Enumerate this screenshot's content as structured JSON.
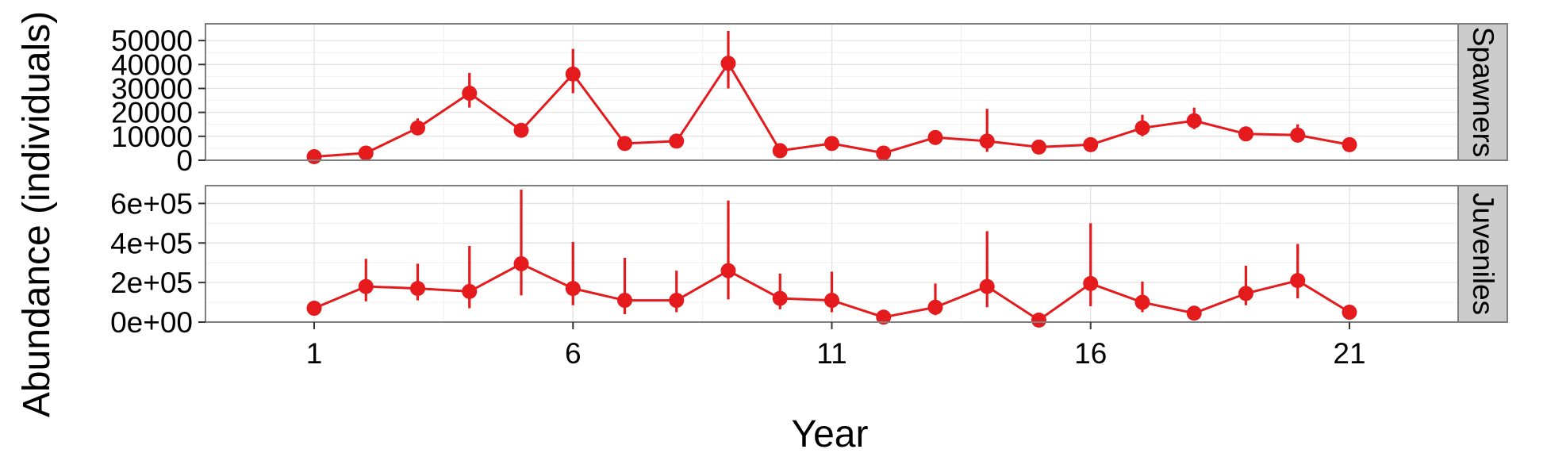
{
  "chart_data": {
    "type": "line",
    "xlabel": "Year",
    "ylabel": "Abundance (individuals)",
    "x": [
      1,
      2,
      3,
      4,
      5,
      6,
      7,
      8,
      9,
      10,
      11,
      12,
      13,
      14,
      15,
      16,
      17,
      18,
      19,
      20,
      21
    ],
    "x_ticks": [
      1,
      6,
      11,
      16,
      21
    ],
    "xlim": [
      -1.1,
      23.1
    ],
    "grid": true,
    "point_color": "#e41a1c",
    "strip_color": "#cccccc",
    "panels": [
      {
        "strip_label": "Spawners",
        "ylim": [
          0,
          57000
        ],
        "y_ticks": [
          0,
          10000,
          20000,
          30000,
          40000,
          50000
        ],
        "y_tick_labels": [
          "0",
          "10000",
          "20000",
          "30000",
          "40000",
          "50000"
        ],
        "values": [
          1500,
          3000,
          13500,
          28000,
          12500,
          36000,
          7000,
          8000,
          40500,
          4000,
          7000,
          3000,
          9500,
          8000,
          5500,
          6500,
          13500,
          16500,
          11000,
          10500,
          6500
        ],
        "lower": [
          null,
          null,
          11000,
          22000,
          null,
          28000,
          null,
          null,
          30000,
          null,
          null,
          null,
          null,
          3500,
          null,
          null,
          10000,
          13000,
          null,
          8000,
          null
        ],
        "upper": [
          null,
          null,
          17500,
          36500,
          null,
          46500,
          null,
          null,
          54000,
          null,
          null,
          null,
          null,
          21500,
          null,
          null,
          19000,
          22000,
          null,
          15000,
          null
        ]
      },
      {
        "strip_label": "Juveniles",
        "ylim": [
          0,
          690000
        ],
        "y_ticks": [
          0,
          200000,
          400000,
          600000
        ],
        "y_tick_labels": [
          "0e+00",
          "2e+05",
          "4e+05",
          "6e+05"
        ],
        "values": [
          70000,
          180000,
          170000,
          155000,
          295000,
          170000,
          110000,
          110000,
          260000,
          120000,
          110000,
          25000,
          75000,
          180000,
          10000,
          195000,
          100000,
          45000,
          145000,
          210000,
          50000
        ],
        "lower": [
          null,
          105000,
          110000,
          70000,
          135000,
          85000,
          40000,
          50000,
          115000,
          65000,
          50000,
          null,
          35000,
          75000,
          null,
          80000,
          50000,
          null,
          85000,
          120000,
          null
        ],
        "upper": [
          135000,
          320000,
          295000,
          385000,
          670000,
          405000,
          325000,
          260000,
          615000,
          245000,
          255000,
          null,
          195000,
          460000,
          null,
          500000,
          205000,
          null,
          285000,
          395000,
          null
        ]
      }
    ]
  }
}
